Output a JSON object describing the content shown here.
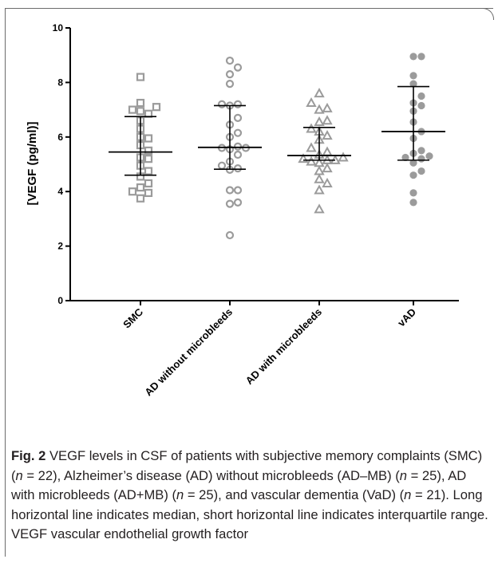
{
  "chart_data": {
    "type": "scatter",
    "ylabel": "[VEGF (pg/ml)]",
    "xlabel": "",
    "ylim": [
      0,
      10
    ],
    "yticks": [
      0,
      2,
      4,
      6,
      8,
      10
    ],
    "categories": [
      "SMC",
      "AD without microbleeds",
      "AD with microbleeds",
      "vAD"
    ],
    "series": [
      {
        "marker": "square-open",
        "points": [
          3.75,
          3.95,
          4.0,
          4.15,
          4.3,
          4.55,
          4.75,
          4.95,
          5.2,
          5.25,
          5.5,
          5.7,
          5.95,
          6.0,
          6.3,
          6.6,
          6.85,
          6.95,
          7.0,
          7.1,
          7.25,
          8.2
        ],
        "median": 5.45,
        "q1": 4.6,
        "q3": 6.75
      },
      {
        "marker": "circle-open",
        "points": [
          2.4,
          3.55,
          3.6,
          4.05,
          4.05,
          4.8,
          4.95,
          5.1,
          5.35,
          5.55,
          5.6,
          5.6,
          5.65,
          6.0,
          6.15,
          6.45,
          6.7,
          7.15,
          7.2,
          7.2,
          7.95,
          8.3,
          8.55,
          8.8,
          4.85
        ],
        "median": 5.62,
        "q1": 4.82,
        "q3": 7.15
      },
      {
        "marker": "triangle-open",
        "points": [
          3.35,
          4.05,
          4.3,
          4.45,
          4.75,
          4.85,
          5.05,
          5.1,
          5.15,
          5.15,
          5.2,
          5.25,
          5.35,
          5.45,
          5.6,
          5.9,
          6.05,
          6.2,
          6.3,
          6.55,
          6.6,
          7.0,
          7.05,
          7.25,
          7.6
        ],
        "median": 5.32,
        "q1": 5.15,
        "q3": 6.35
      },
      {
        "marker": "circle-filled",
        "points": [
          3.6,
          3.95,
          4.6,
          4.75,
          5.05,
          5.2,
          5.25,
          5.3,
          5.4,
          5.5,
          5.95,
          6.2,
          6.55,
          6.95,
          7.15,
          7.25,
          7.5,
          7.95,
          8.25,
          8.95,
          8.95
        ],
        "median": 6.2,
        "q1": 5.15,
        "q3": 7.85
      }
    ],
    "grid": false,
    "legend": "none",
    "colors": {
      "marker": "#9b9b9b",
      "lines": "#000000",
      "axis": "#000000"
    }
  },
  "caption": {
    "label": "Fig. 2",
    "text_before_1": " VEGF levels in CSF of patients with subjective memory complaints (SMC) (",
    "n_label": "n",
    "text_after_1": " = 22), Alzheimer’s disease (AD) without microbleeds (AD–MB) (",
    "text_after_2": " = 25), AD with microbleeds (AD+MB) (",
    "text_after_3": " = 25), and vascular dementia (VaD) (",
    "text_after_4": " = 21). Long horizontal line indicates median, short horizontal line indicates interquartile range. VEGF vascular endothelial growth factor"
  }
}
